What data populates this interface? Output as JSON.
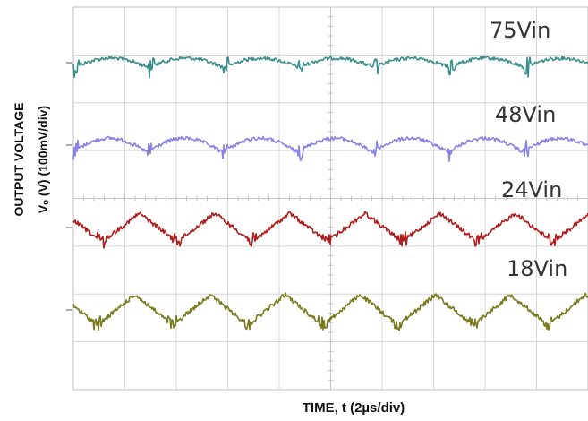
{
  "chart_data": {
    "type": "line",
    "title": "",
    "xlabel": "TIME, t (2µs/div)",
    "ylabel_line1": "OUTPUT VOLTAGE",
    "ylabel_line2": "Vₒ (V) (100mV/div)",
    "grid": true,
    "x_divisions": 10,
    "y_divisions": 8,
    "x_units_per_div": "2µs",
    "y_units_per_div": "100mV",
    "series": [
      {
        "name": "75Vin",
        "label": "75Vin",
        "color": "#3a8f8a",
        "period_div": 1.46,
        "amplitude_div": 0.12,
        "shape": "hump"
      },
      {
        "name": "48Vin",
        "label": "48Vin",
        "color": "#8a83e6",
        "period_div": 1.46,
        "amplitude_div": 0.18,
        "shape": "hump"
      },
      {
        "name": "24Vin",
        "label": "24Vin",
        "color": "#b01e1e",
        "period_div": 1.46,
        "amplitude_div": 0.3,
        "shape": "triangle"
      },
      {
        "name": "18Vin",
        "label": "18Vin",
        "color": "#7a7a1e",
        "period_div": 1.46,
        "amplitude_div": 0.32,
        "shape": "triangle"
      }
    ]
  }
}
